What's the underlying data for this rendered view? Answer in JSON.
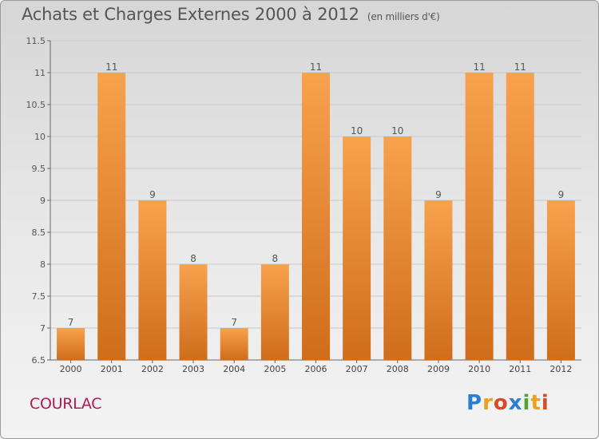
{
  "header": {
    "title": "Achats et Charges Externes 2000 à 2012",
    "subtitle": "(en milliers d'€)"
  },
  "footer": {
    "commune": "COURLAC",
    "logo_text": "Proxiti"
  },
  "colors": {
    "bar_light": "#f8a24e",
    "bar_dark": "#cf6d1b",
    "commune": "#b01a52",
    "logo": [
      "#2a7fd2",
      "#e8a21e",
      "#d94b25",
      "#2a7fd2",
      "#4fa33a",
      "#e8a21e",
      "#d94b25"
    ]
  },
  "chart_data": {
    "type": "bar",
    "title": "Achats et Charges Externes 2000 à 2012",
    "subtitle": "(en milliers d'€)",
    "categories": [
      "2000",
      "2001",
      "2002",
      "2003",
      "2004",
      "2005",
      "2006",
      "2007",
      "2008",
      "2009",
      "2010",
      "2011",
      "2012"
    ],
    "values": [
      7,
      11,
      9,
      8,
      7,
      8,
      11,
      10,
      10,
      9,
      11,
      11,
      9
    ],
    "data_labels": [
      "7",
      "11",
      "9",
      "8",
      "7",
      "8",
      "11",
      "10",
      "10",
      "9",
      "11",
      "11",
      "9"
    ],
    "ylim": [
      6.5,
      11.5
    ],
    "yticks": [
      6.5,
      7,
      7.5,
      8,
      8.5,
      9,
      9.5,
      10,
      10.5,
      11,
      11.5
    ],
    "ytick_labels": [
      "6.5",
      "7",
      "7.5",
      "8",
      "8.5",
      "9",
      "9.5",
      "10",
      "10.5",
      "11",
      "11.5"
    ],
    "grid": true,
    "legend": "none"
  }
}
